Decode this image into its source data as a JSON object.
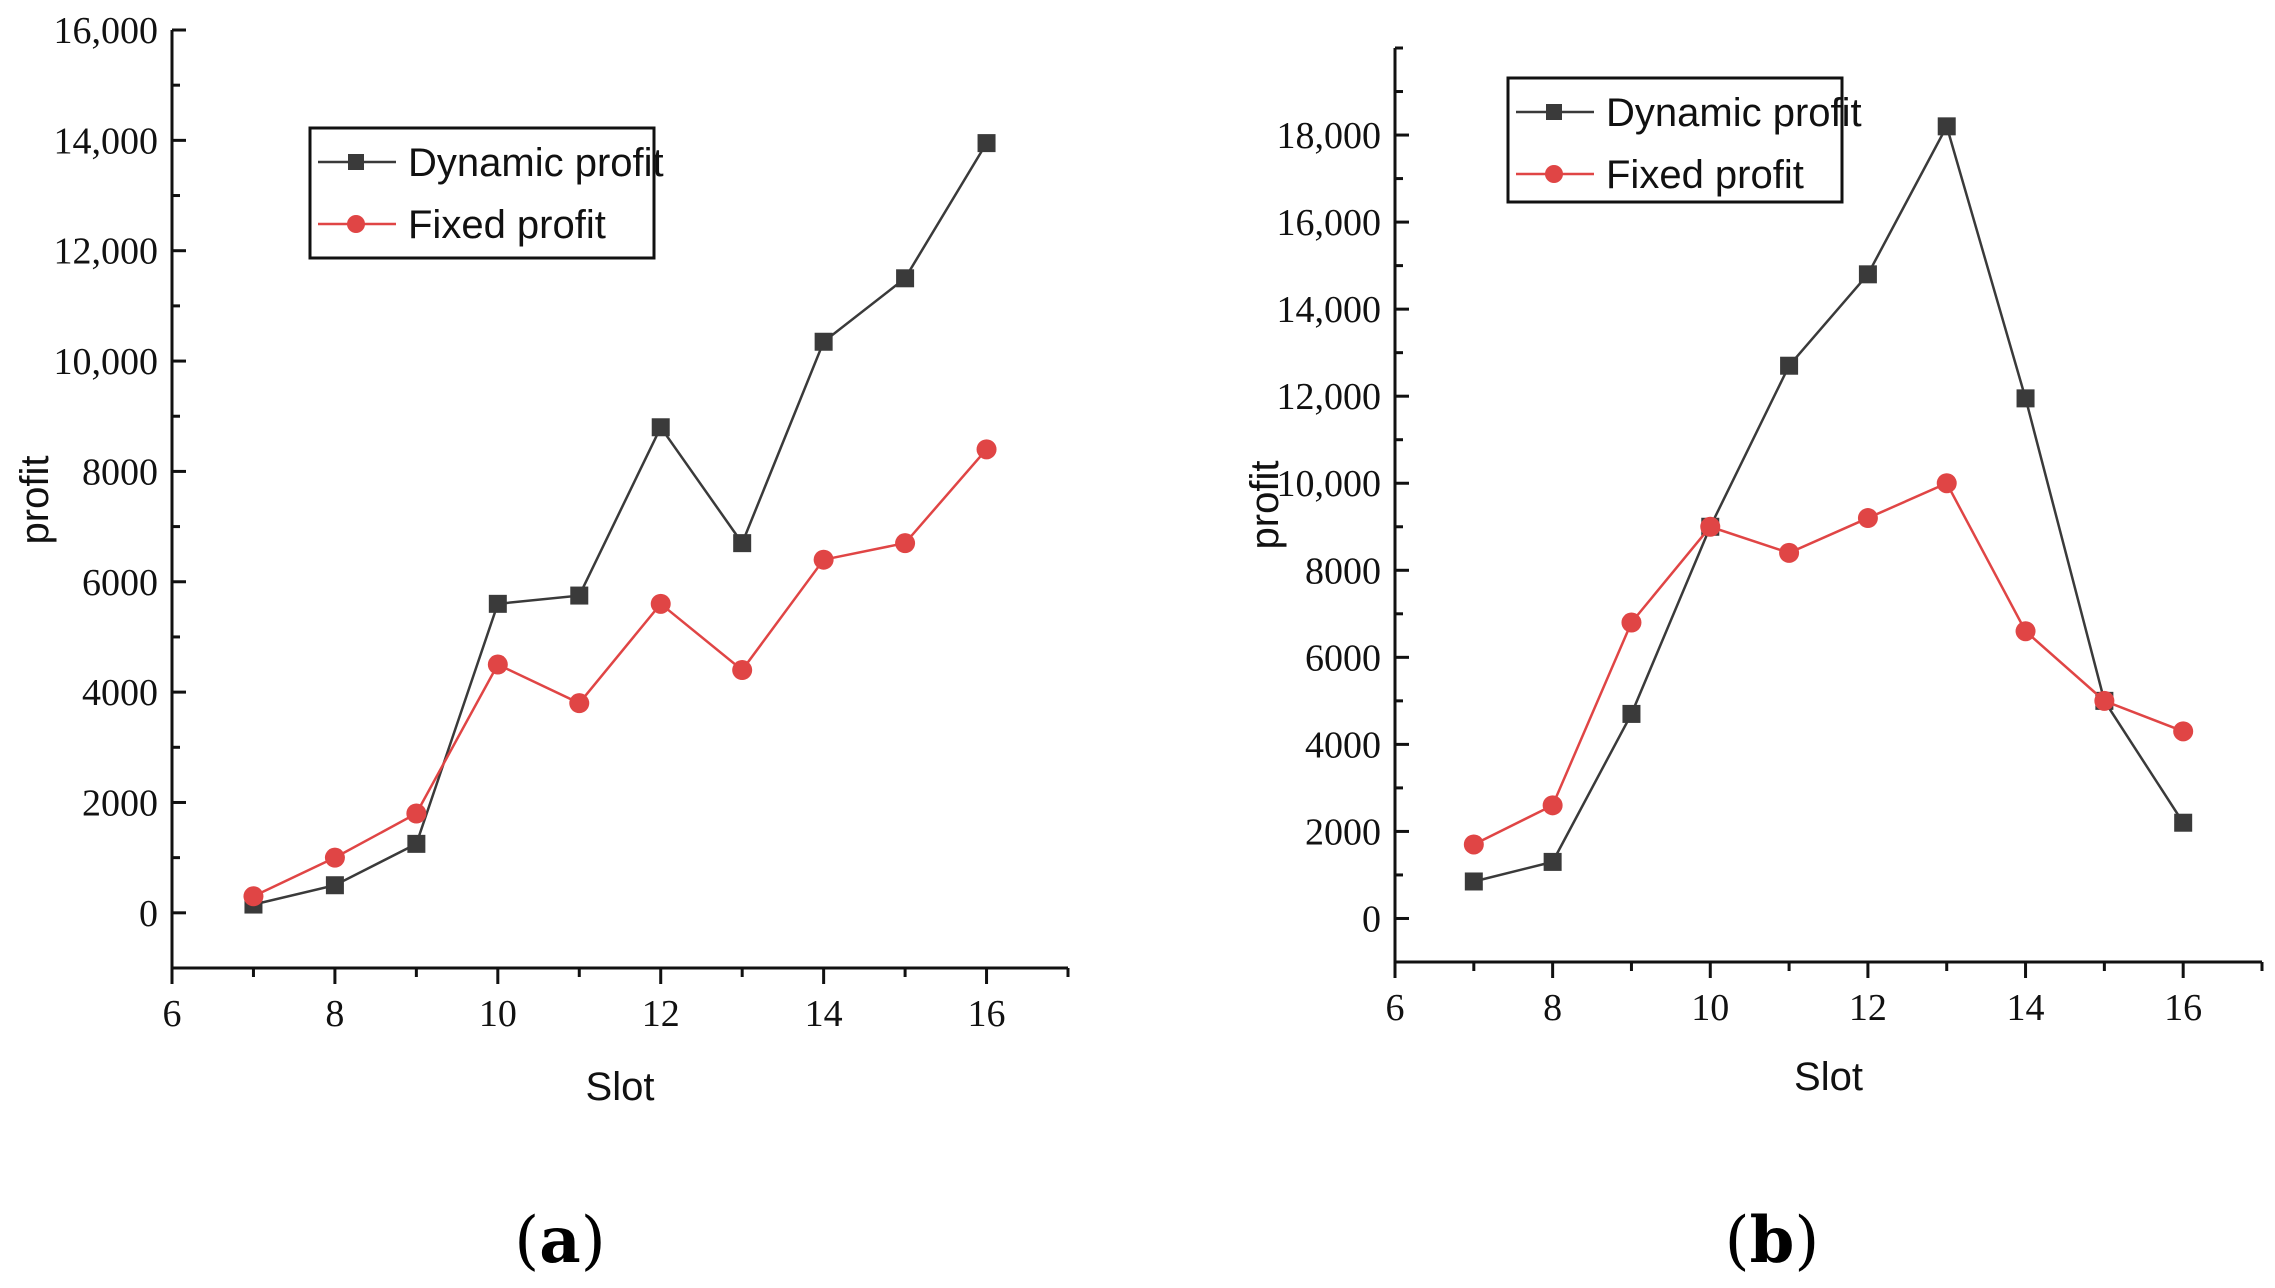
{
  "colors": {
    "dynamic": "#3a3a3a",
    "fixed": "#e04545",
    "axis": "#111111"
  },
  "chart_data": [
    {
      "panel": "a",
      "panel_label_open": "(",
      "panel_label_letter": "a",
      "panel_label_close": ")",
      "type": "line",
      "xlabel": "Slot",
      "ylabel": "profit",
      "xlim": [
        6,
        17
      ],
      "ylim": [
        -1000,
        16000
      ],
      "xticks": [
        6,
        8,
        10,
        12,
        14,
        16
      ],
      "yticks": [
        0,
        2000,
        4000,
        6000,
        8000,
        10000,
        12000,
        14000,
        16000
      ],
      "yticklabels": [
        "0",
        "2000",
        "4000",
        "6000",
        "8000",
        "10,000",
        "12,000",
        "14,000",
        "16,000"
      ],
      "legend_position": "top-center",
      "series": [
        {
          "name": "Dynamic profit",
          "marker": "square",
          "x": [
            7,
            8,
            9,
            10,
            11,
            12,
            13,
            14,
            15,
            16
          ],
          "values": [
            150,
            500,
            1250,
            5600,
            5750,
            8800,
            6700,
            10350,
            11500,
            13950
          ]
        },
        {
          "name": "Fixed profit",
          "marker": "circle",
          "x": [
            7,
            8,
            9,
            10,
            11,
            12,
            13,
            14,
            15,
            16
          ],
          "values": [
            300,
            1000,
            1800,
            4500,
            3800,
            5600,
            4400,
            6400,
            6700,
            8400
          ]
        }
      ]
    },
    {
      "panel": "b",
      "panel_label_open": "(",
      "panel_label_letter": "b",
      "panel_label_close": ")",
      "type": "line",
      "xlabel": "Slot",
      "ylabel": "profit",
      "xlim": [
        6,
        17
      ],
      "ylim": [
        -1000,
        20000
      ],
      "xticks": [
        6,
        8,
        10,
        12,
        14,
        16
      ],
      "yticks": [
        0,
        2000,
        4000,
        6000,
        8000,
        10000,
        12000,
        14000,
        16000,
        18000
      ],
      "yticklabels": [
        "0",
        "2000",
        "4000",
        "6000",
        "8000",
        "10,000",
        "12,000",
        "14,000",
        "16,000",
        "18,000"
      ],
      "legend_position": "top-left",
      "series": [
        {
          "name": "Dynamic profit",
          "marker": "square",
          "x": [
            7,
            8,
            9,
            10,
            11,
            12,
            13,
            14,
            15,
            16
          ],
          "values": [
            850,
            1300,
            4700,
            9000,
            12700,
            14800,
            18200,
            11950,
            5000,
            2200
          ]
        },
        {
          "name": "Fixed profit",
          "marker": "circle",
          "x": [
            7,
            8,
            9,
            10,
            11,
            12,
            13,
            14,
            15,
            16
          ],
          "values": [
            1700,
            2600,
            6800,
            9000,
            8400,
            9200,
            10000,
            6600,
            5000,
            4300
          ]
        }
      ]
    }
  ]
}
